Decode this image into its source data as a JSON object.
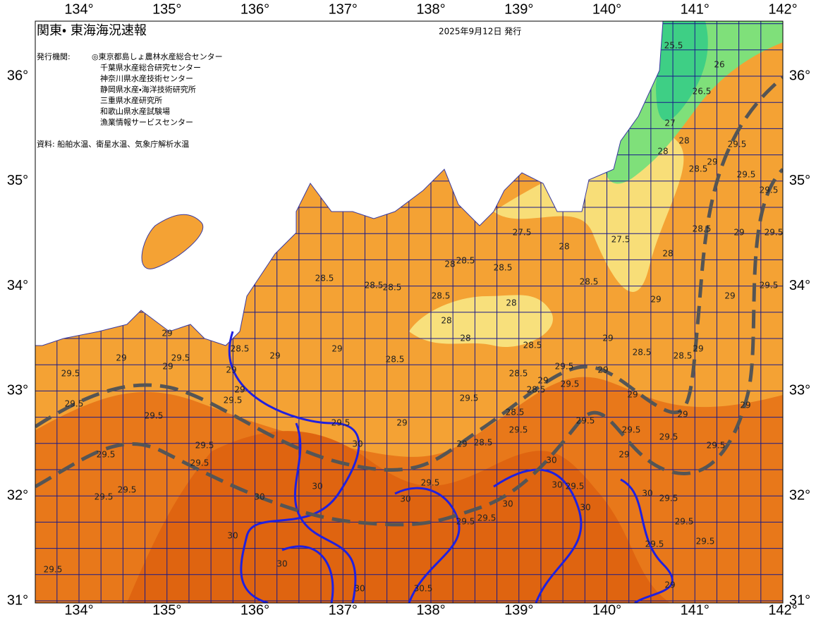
{
  "header": {
    "title": "関東・ 東海海況速報",
    "date": "2025年9月12日 発行",
    "issuer_label": "発行機関:",
    "issuers": [
      "◎東京都島しょ農林水産総合センター",
      "千葉県水産総合研究センター",
      "神奈川県水産技術センター",
      "静岡県水産・海洋技術研究所",
      "三重県水産研究所",
      "和歌山県水産試験場",
      "漁業情報サービスセンター"
    ],
    "source": "資料: 船舶水温、衛星水温、気象庁解析水温"
  },
  "axes": {
    "lon_labels": [
      "134°",
      "135°",
      "136°",
      "137°",
      "138°",
      "139°",
      "140°",
      "141°",
      "142°"
    ],
    "lat_labels": [
      "36°",
      "35°",
      "34°",
      "33°",
      "32°",
      "31°"
    ]
  },
  "contours": {
    "labels": [
      25.5,
      26,
      26.5,
      27,
      28,
      28,
      29.5,
      29,
      28.5,
      29.5,
      29.5,
      28.5,
      29,
      29.5,
      28,
      27.5,
      27.5,
      28,
      28.5,
      28,
      28.5,
      28.5,
      28,
      28.5,
      28.5,
      28.5,
      28.5,
      28,
      28,
      29,
      29,
      29.5,
      29,
      28.5,
      28.5,
      29,
      28.5,
      28.5,
      29,
      29,
      28.5,
      29,
      29.5,
      29,
      29,
      29,
      29,
      29.5,
      29.5,
      29.5,
      29.5,
      29.5,
      29.5,
      29.5,
      29.5,
      29.5,
      29.5,
      28.5,
      28.5,
      29,
      29.5,
      29,
      29.5,
      29,
      28.5,
      29.5,
      29.5,
      29.5,
      29.5,
      29.5,
      29,
      29,
      29,
      29,
      29.5,
      30,
      29,
      28.5,
      29.5,
      30,
      30,
      30,
      29.5,
      29.5,
      30,
      30,
      29.5,
      30,
      30,
      30,
      29.5,
      29.5,
      29.5,
      29.5,
      29,
      29.5,
      30,
      30.5,
      30,
      30
    ]
  }
}
